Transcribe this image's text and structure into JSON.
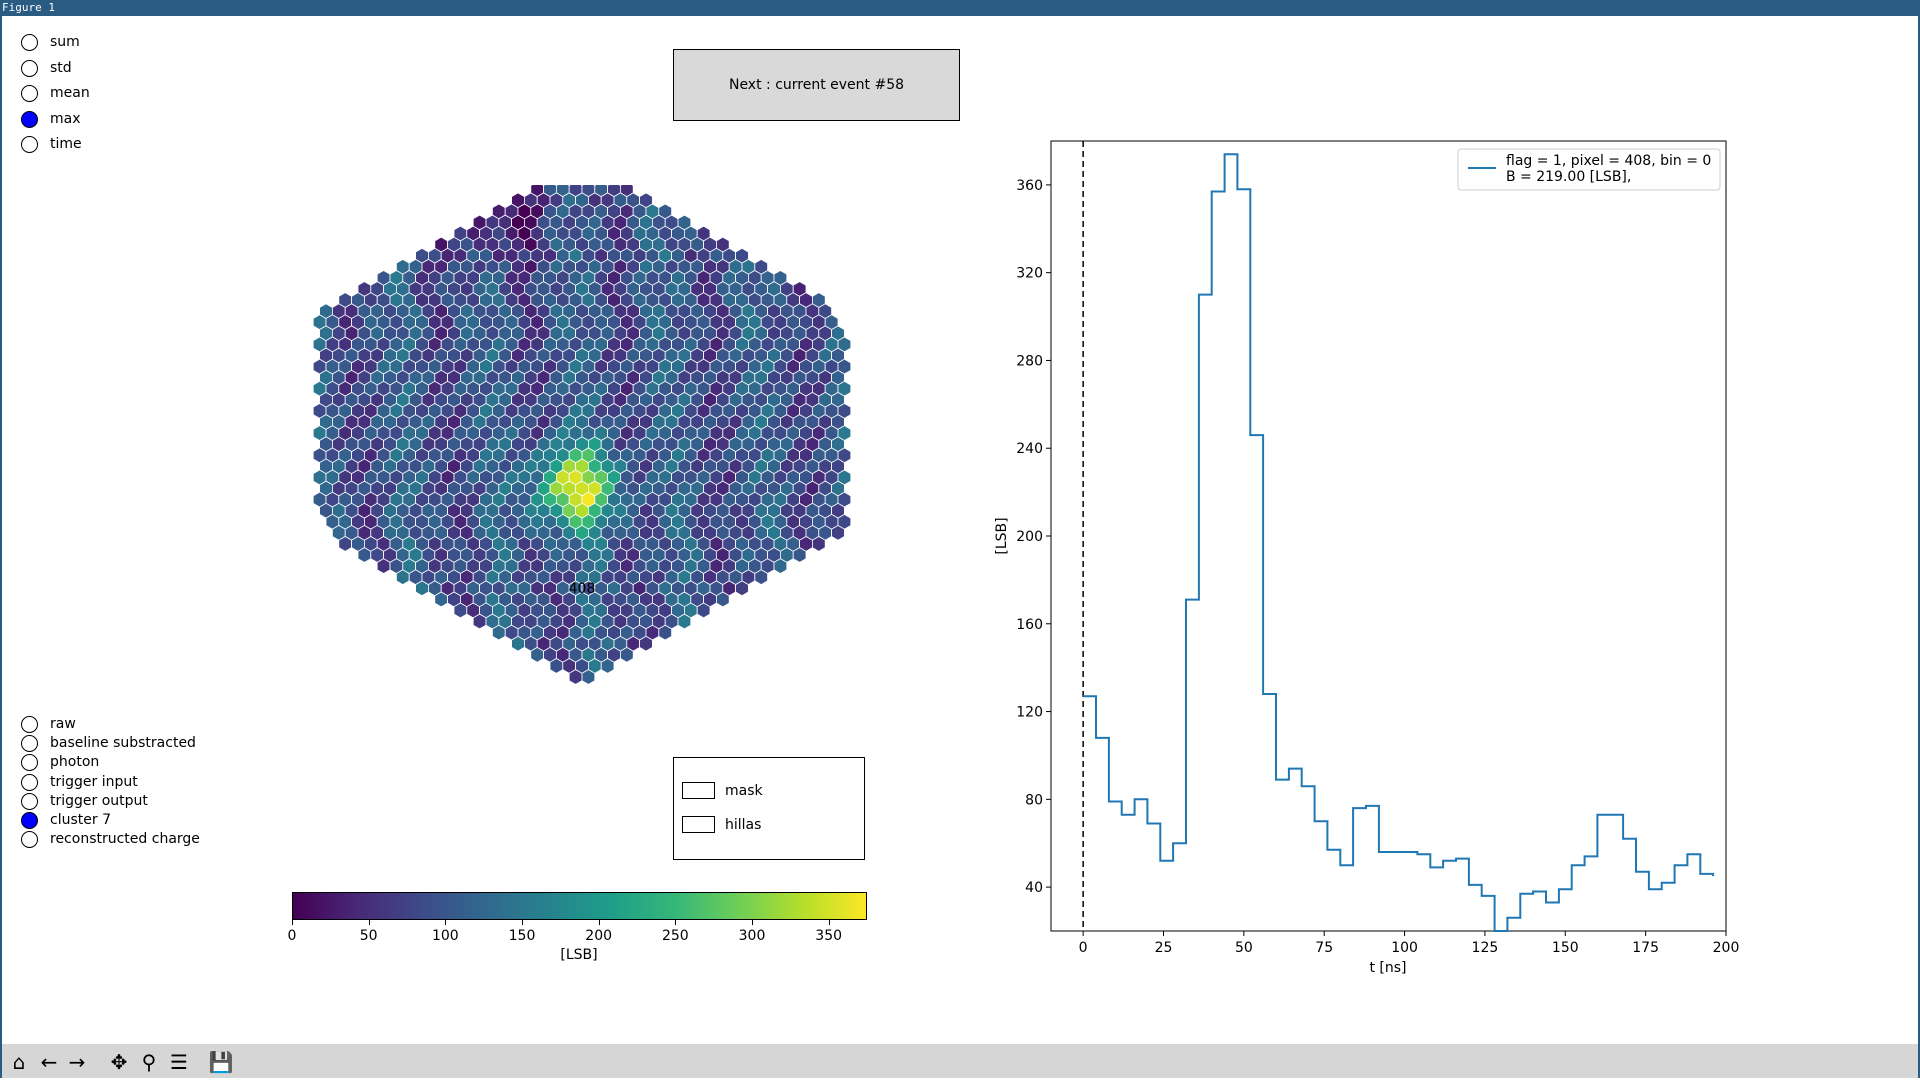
{
  "window": {
    "title": "Figure 1"
  },
  "stat_options": {
    "items": [
      {
        "label": "sum",
        "selected": false
      },
      {
        "label": "std",
        "selected": false
      },
      {
        "label": "mean",
        "selected": false
      },
      {
        "label": "max",
        "selected": true
      },
      {
        "label": "time",
        "selected": false
      }
    ]
  },
  "view_options": {
    "items": [
      {
        "label": "raw",
        "selected": false
      },
      {
        "label": "baseline substracted",
        "selected": false
      },
      {
        "label": "photon",
        "selected": false
      },
      {
        "label": "trigger input",
        "selected": false
      },
      {
        "label": "trigger output",
        "selected": false
      },
      {
        "label": "cluster 7",
        "selected": true
      },
      {
        "label": "reconstructed charge",
        "selected": false
      }
    ]
  },
  "next_button": {
    "label": "Next : current event #58"
  },
  "checkboxes": {
    "items": [
      {
        "label": "mask",
        "checked": false
      },
      {
        "label": "hillas",
        "checked": false
      }
    ]
  },
  "camera": {
    "pixel_label": "408",
    "colorbar": {
      "colormap": "viridis",
      "min": 0,
      "max": 375,
      "ticks": [
        "0",
        "50",
        "100",
        "150",
        "200",
        "250",
        "300",
        "350"
      ],
      "label": "[LSB]"
    }
  },
  "chart_data": {
    "type": "line",
    "drawstyle": "steps-post",
    "xlabel": "t [ns]",
    "ylabel": "[LSB]",
    "xlim": [
      -10,
      200
    ],
    "ylim": [
      20,
      380
    ],
    "xticks": [
      0,
      25,
      50,
      75,
      100,
      125,
      150,
      175,
      200
    ],
    "yticks": [
      40,
      80,
      120,
      160,
      200,
      240,
      280,
      320,
      360
    ],
    "vline_x": 0,
    "legend_position": "top-right",
    "series": [
      {
        "name": "flag = 1, pixel = 408, bin = 0\nB = 219.00 [LSB],",
        "legend_line1": "flag = 1, pixel = 408, bin = 0",
        "legend_line2": "B = 219.00 [LSB],",
        "color": "#1f77b4",
        "x": [
          0,
          4,
          8,
          12,
          16,
          20,
          24,
          28,
          32,
          36,
          40,
          44,
          48,
          52,
          56,
          60,
          64,
          68,
          72,
          76,
          80,
          84,
          88,
          92,
          96,
          100,
          104,
          108,
          112,
          116,
          120,
          124,
          128,
          132,
          136,
          140,
          144,
          148,
          152,
          156,
          160,
          164,
          168,
          172,
          176,
          180,
          184,
          188,
          192,
          196
        ],
        "values": [
          127,
          108,
          79,
          73,
          80,
          69,
          52,
          60,
          171,
          310,
          357,
          374,
          358,
          246,
          128,
          89,
          94,
          86,
          70,
          57,
          50,
          76,
          77,
          56,
          56,
          56,
          55,
          49,
          52,
          53,
          41,
          36,
          16,
          26,
          37,
          38,
          33,
          39,
          50,
          54,
          73,
          73,
          62,
          47,
          39,
          42,
          50,
          55,
          46,
          45
        ]
      }
    ]
  },
  "toolbar": {
    "buttons": [
      {
        "name": "home",
        "glyph": "⌂"
      },
      {
        "name": "back",
        "glyph": "←"
      },
      {
        "name": "forward",
        "glyph": "→"
      },
      {
        "name": "pan",
        "glyph": "✥"
      },
      {
        "name": "zoom",
        "glyph": "⚲"
      },
      {
        "name": "configure",
        "glyph": "☰"
      },
      {
        "name": "save",
        "glyph": "💾"
      }
    ]
  }
}
